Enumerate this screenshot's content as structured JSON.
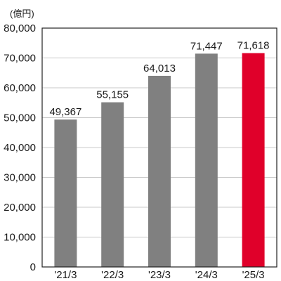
{
  "chart_data": {
    "type": "bar",
    "unit_label": "(億円)",
    "categories": [
      "'21/3",
      "'22/3",
      "'23/3",
      "'24/3",
      "'25/3"
    ],
    "values": [
      49367,
      55155,
      64013,
      71447,
      71618
    ],
    "data_labels": [
      "49,367",
      "55,155",
      "64,013",
      "71,447",
      "71,618"
    ],
    "ylim": [
      0,
      80000
    ],
    "yticks": [
      0,
      10000,
      20000,
      30000,
      40000,
      50000,
      60000,
      70000,
      80000
    ],
    "ytick_labels": [
      "0",
      "10,000",
      "20,000",
      "30,000",
      "40,000",
      "50,000",
      "60,000",
      "70,000",
      "80,000"
    ],
    "grid": true,
    "colors": {
      "bar": "#808080",
      "highlight_bar": "#e0002a",
      "highlight_index": 4,
      "grid": "#c8c8c8",
      "axis": "#222222"
    }
  }
}
